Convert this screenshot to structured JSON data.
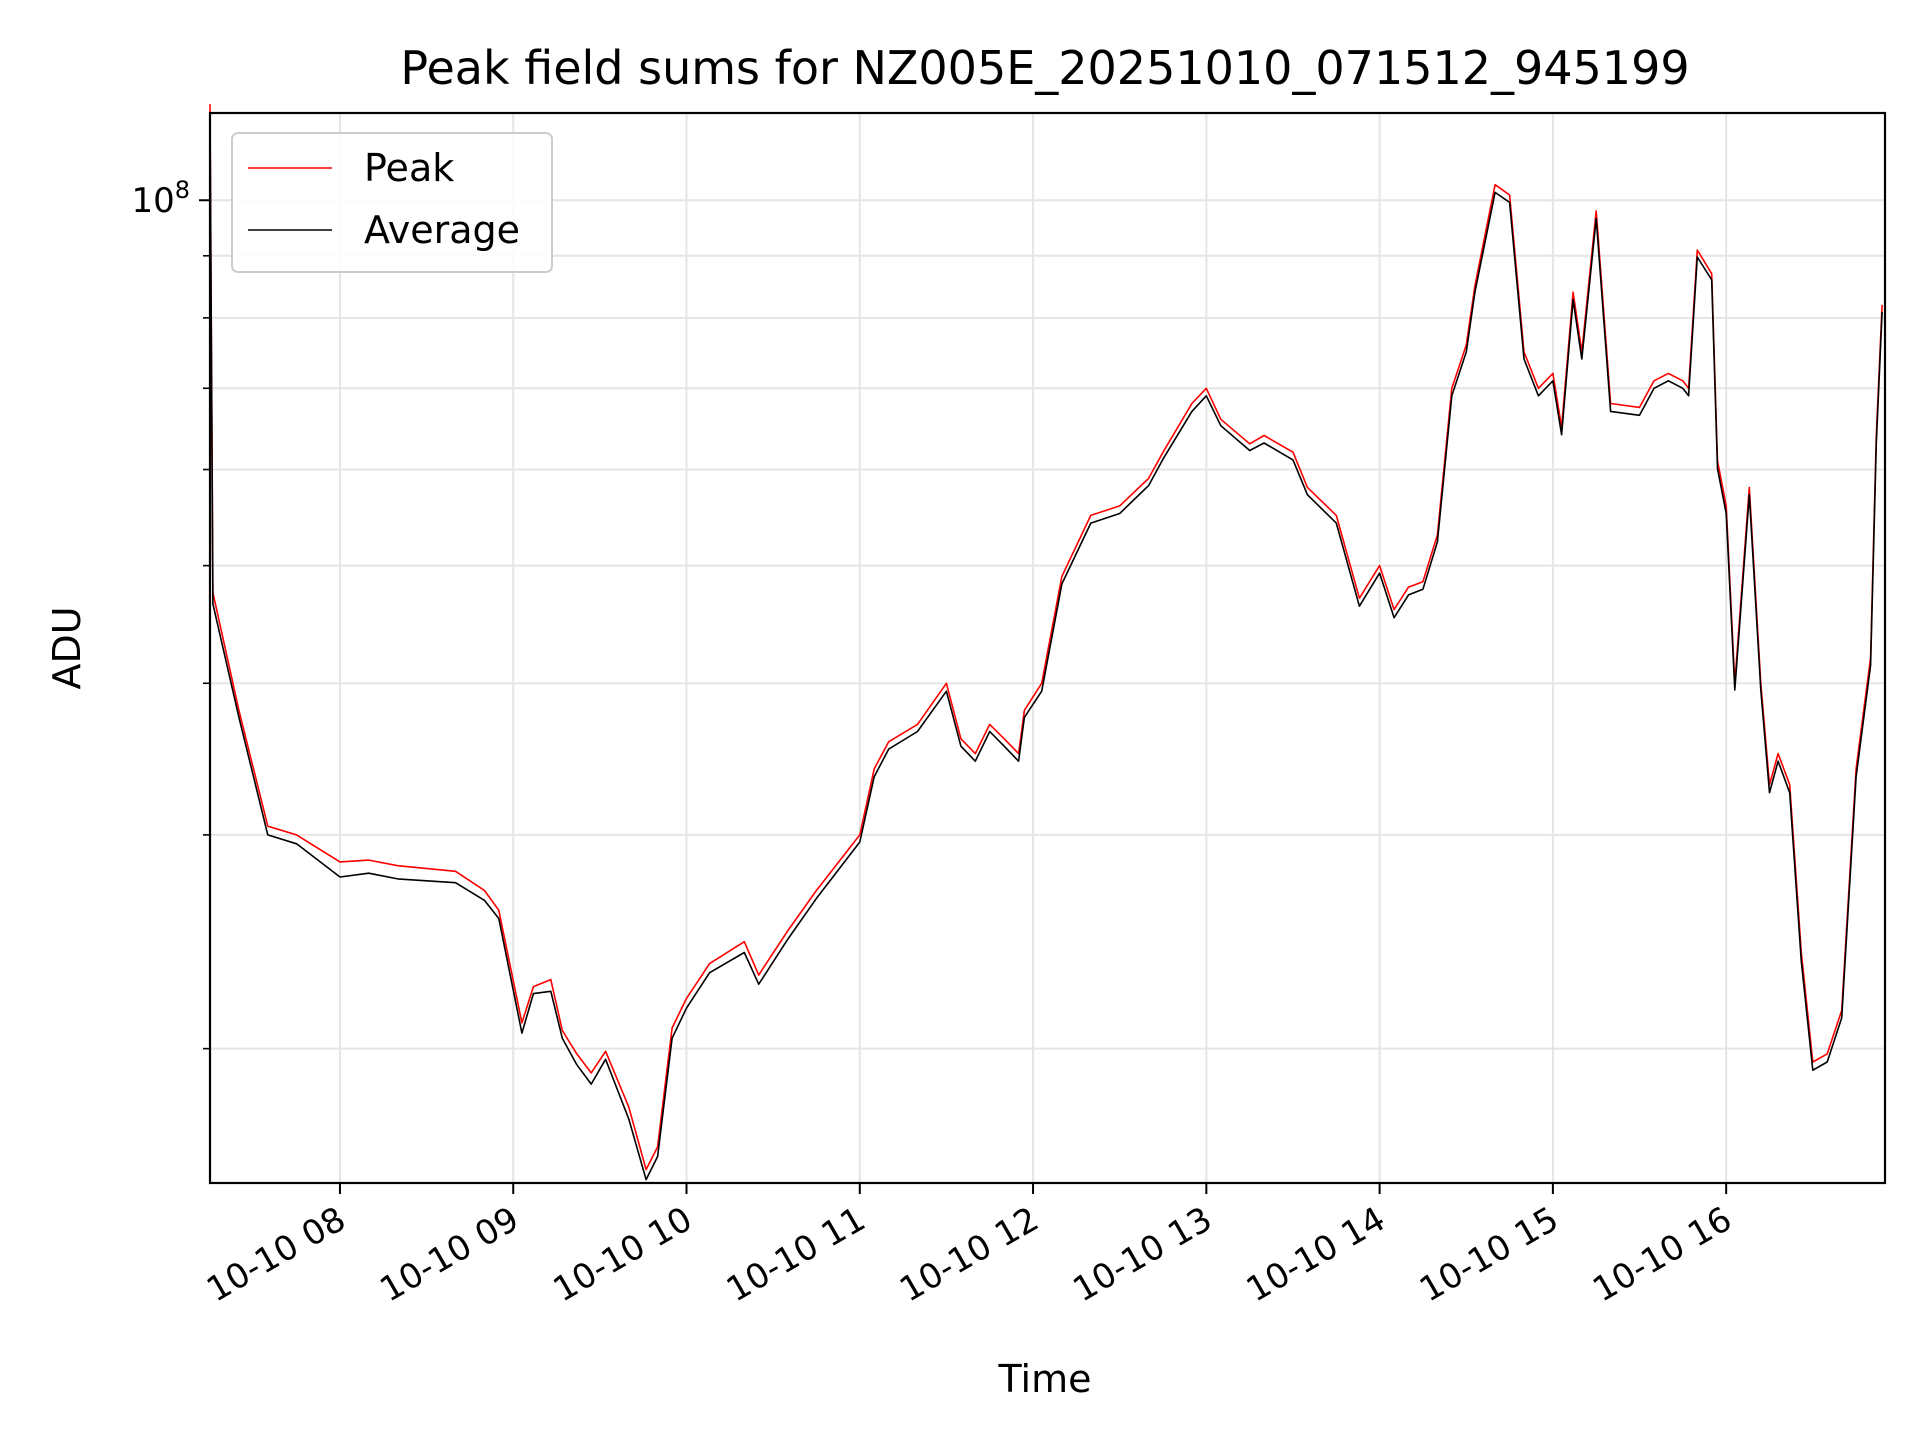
{
  "chart_data": {
    "type": "line",
    "title": "Peak field sums for NZ005E_20251010_071512_945199",
    "xlabel": "Time",
    "ylabel": "ADU",
    "y_scale": "log",
    "ylim": [
      15500000,
      118000000
    ],
    "xlim": [
      "2025-10-10 07:15",
      "2025-10-10 16:55"
    ],
    "x_ticks": [
      {
        "value": "2025-10-10 08:00",
        "label": "10-10 08"
      },
      {
        "value": "2025-10-10 09:00",
        "label": "10-10 09"
      },
      {
        "value": "2025-10-10 10:00",
        "label": "10-10 10"
      },
      {
        "value": "2025-10-10 11:00",
        "label": "10-10 11"
      },
      {
        "value": "2025-10-10 12:00",
        "label": "10-10 12"
      },
      {
        "value": "2025-10-10 13:00",
        "label": "10-10 13"
      },
      {
        "value": "2025-10-10 14:00",
        "label": "10-10 14"
      },
      {
        "value": "2025-10-10 15:00",
        "label": "10-10 15"
      },
      {
        "value": "2025-10-10 16:00",
        "label": "10-10 16"
      }
    ],
    "y_major_tick": {
      "value": 100000000,
      "label_base": "10",
      "label_exp": "8"
    },
    "y_minor_ticks": [
      20000000,
      30000000,
      40000000,
      50000000,
      60000000,
      70000000,
      80000000,
      90000000
    ],
    "grid": true,
    "legend_position": "top-left",
    "series": [
      {
        "name": "Peak",
        "color": "#ff0000",
        "x": [
          "2025-10-10 07:15",
          "2025-10-10 07:16",
          "2025-10-10 07:25",
          "2025-10-10 07:35",
          "2025-10-10 07:45",
          "2025-10-10 08:00",
          "2025-10-10 08:10",
          "2025-10-10 08:20",
          "2025-10-10 08:40",
          "2025-10-10 08:50",
          "2025-10-10 08:55",
          "2025-10-10 09:03",
          "2025-10-10 09:07",
          "2025-10-10 09:13",
          "2025-10-10 09:17",
          "2025-10-10 09:22",
          "2025-10-10 09:27",
          "2025-10-10 09:32",
          "2025-10-10 09:40",
          "2025-10-10 09:46",
          "2025-10-10 09:50",
          "2025-10-10 09:55",
          "2025-10-10 10:00",
          "2025-10-10 10:08",
          "2025-10-10 10:20",
          "2025-10-10 10:25",
          "2025-10-10 10:35",
          "2025-10-10 10:45",
          "2025-10-10 11:00",
          "2025-10-10 11:05",
          "2025-10-10 11:10",
          "2025-10-10 11:20",
          "2025-10-10 11:30",
          "2025-10-10 11:35",
          "2025-10-10 11:40",
          "2025-10-10 11:45",
          "2025-10-10 11:50",
          "2025-10-10 11:55",
          "2025-10-10 11:57",
          "2025-10-10 12:03",
          "2025-10-10 12:10",
          "2025-10-10 12:20",
          "2025-10-10 12:30",
          "2025-10-10 12:40",
          "2025-10-10 12:45",
          "2025-10-10 12:55",
          "2025-10-10 13:00",
          "2025-10-10 13:05",
          "2025-10-10 13:15",
          "2025-10-10 13:20",
          "2025-10-10 13:30",
          "2025-10-10 13:35",
          "2025-10-10 13:45",
          "2025-10-10 13:53",
          "2025-10-10 14:00",
          "2025-10-10 14:05",
          "2025-10-10 14:10",
          "2025-10-10 14:15",
          "2025-10-10 14:20",
          "2025-10-10 14:25",
          "2025-10-10 14:30",
          "2025-10-10 14:33",
          "2025-10-10 14:40",
          "2025-10-10 14:45",
          "2025-10-10 14:50",
          "2025-10-10 14:55",
          "2025-10-10 15:00",
          "2025-10-10 15:03",
          "2025-10-10 15:07",
          "2025-10-10 15:10",
          "2025-10-10 15:15",
          "2025-10-10 15:20",
          "2025-10-10 15:30",
          "2025-10-10 15:35",
          "2025-10-10 15:40",
          "2025-10-10 15:45",
          "2025-10-10 15:47",
          "2025-10-10 15:50",
          "2025-10-10 15:55",
          "2025-10-10 15:57",
          "2025-10-10 16:00",
          "2025-10-10 16:03",
          "2025-10-10 16:08",
          "2025-10-10 16:12",
          "2025-10-10 16:15",
          "2025-10-10 16:18",
          "2025-10-10 16:22",
          "2025-10-10 16:26",
          "2025-10-10 16:30",
          "2025-10-10 16:35",
          "2025-10-10 16:40",
          "2025-10-10 16:45",
          "2025-10-10 16:50",
          "2025-10-10 16:52",
          "2025-10-10 16:54"
        ],
        "y": [
          120000000,
          47500000,
          38000000,
          30500000,
          30000000,
          28500000,
          28600000,
          28300000,
          28000000,
          27000000,
          26000000,
          21000000,
          22500000,
          22800000,
          20700000,
          19800000,
          19100000,
          19900000,
          17900000,
          15900000,
          16600000,
          20800000,
          22000000,
          23500000,
          24500000,
          23000000,
          25000000,
          27000000,
          30000000,
          34000000,
          35800000,
          37000000,
          40000000,
          36000000,
          35000000,
          37000000,
          36000000,
          35000000,
          38000000,
          40000000,
          49000000,
          55000000,
          56000000,
          59000000,
          62000000,
          68000000,
          70000000,
          66000000,
          63000000,
          64000000,
          62000000,
          58000000,
          55000000,
          47000000,
          50000000,
          46000000,
          48000000,
          48500000,
          53000000,
          70000000,
          76000000,
          85000000,
          103000000,
          101000000,
          75000000,
          70000000,
          72000000,
          65000000,
          84000000,
          75000000,
          98000000,
          68000000,
          67500000,
          71000000,
          72000000,
          71000000,
          70000000,
          91000000,
          87000000,
          61000000,
          56000000,
          40000000,
          58000000,
          40000000,
          33000000,
          35000000,
          33000000,
          24000000,
          19500000,
          19800000,
          21500000,
          34000000,
          42000000,
          64000000,
          82000000
        ]
      },
      {
        "name": "Average",
        "color": "#000000",
        "x": [
          "2025-10-10 07:15",
          "2025-10-10 07:16",
          "2025-10-10 07:25",
          "2025-10-10 07:35",
          "2025-10-10 07:45",
          "2025-10-10 08:00",
          "2025-10-10 08:10",
          "2025-10-10 08:20",
          "2025-10-10 08:40",
          "2025-10-10 08:50",
          "2025-10-10 08:55",
          "2025-10-10 09:03",
          "2025-10-10 09:07",
          "2025-10-10 09:13",
          "2025-10-10 09:17",
          "2025-10-10 09:22",
          "2025-10-10 09:27",
          "2025-10-10 09:32",
          "2025-10-10 09:40",
          "2025-10-10 09:46",
          "2025-10-10 09:50",
          "2025-10-10 09:55",
          "2025-10-10 10:00",
          "2025-10-10 10:08",
          "2025-10-10 10:20",
          "2025-10-10 10:25",
          "2025-10-10 10:35",
          "2025-10-10 10:45",
          "2025-10-10 11:00",
          "2025-10-10 11:05",
          "2025-10-10 11:10",
          "2025-10-10 11:20",
          "2025-10-10 11:30",
          "2025-10-10 11:35",
          "2025-10-10 11:40",
          "2025-10-10 11:45",
          "2025-10-10 11:50",
          "2025-10-10 11:55",
          "2025-10-10 11:57",
          "2025-10-10 12:03",
          "2025-10-10 12:10",
          "2025-10-10 12:20",
          "2025-10-10 12:30",
          "2025-10-10 12:40",
          "2025-10-10 12:45",
          "2025-10-10 12:55",
          "2025-10-10 13:00",
          "2025-10-10 13:05",
          "2025-10-10 13:15",
          "2025-10-10 13:20",
          "2025-10-10 13:30",
          "2025-10-10 13:35",
          "2025-10-10 13:45",
          "2025-10-10 13:53",
          "2025-10-10 14:00",
          "2025-10-10 14:05",
          "2025-10-10 14:10",
          "2025-10-10 14:15",
          "2025-10-10 14:20",
          "2025-10-10 14:25",
          "2025-10-10 14:30",
          "2025-10-10 14:33",
          "2025-10-10 14:40",
          "2025-10-10 14:45",
          "2025-10-10 14:50",
          "2025-10-10 14:55",
          "2025-10-10 15:00",
          "2025-10-10 15:03",
          "2025-10-10 15:07",
          "2025-10-10 15:10",
          "2025-10-10 15:15",
          "2025-10-10 15:20",
          "2025-10-10 15:30",
          "2025-10-10 15:35",
          "2025-10-10 15:40",
          "2025-10-10 15:45",
          "2025-10-10 15:47",
          "2025-10-10 15:50",
          "2025-10-10 15:55",
          "2025-10-10 15:57",
          "2025-10-10 16:00",
          "2025-10-10 16:03",
          "2025-10-10 16:08",
          "2025-10-10 16:12",
          "2025-10-10 16:15",
          "2025-10-10 16:18",
          "2025-10-10 16:22",
          "2025-10-10 16:26",
          "2025-10-10 16:30",
          "2025-10-10 16:35",
          "2025-10-10 16:40",
          "2025-10-10 16:45",
          "2025-10-10 16:50",
          "2025-10-10 16:52",
          "2025-10-10 16:54"
        ],
        "y": [
          118000000,
          46500000,
          37500000,
          30000000,
          29500000,
          27700000,
          27900000,
          27600000,
          27400000,
          26500000,
          25600000,
          20600000,
          22200000,
          22300000,
          20400000,
          19400000,
          18700000,
          19600000,
          17500000,
          15600000,
          16300000,
          20400000,
          21600000,
          23100000,
          24000000,
          22600000,
          24600000,
          26600000,
          29600000,
          33500000,
          35300000,
          36500000,
          39400000,
          35500000,
          34500000,
          36500000,
          35500000,
          34500000,
          37500000,
          39400000,
          48300000,
          54200000,
          55200000,
          58200000,
          61200000,
          67000000,
          69000000,
          65200000,
          62200000,
          63100000,
          61100000,
          57200000,
          54200000,
          46300000,
          49300000,
          45300000,
          47300000,
          47800000,
          52300000,
          69000000,
          75000000,
          84000000,
          101500000,
          99600000,
          74000000,
          69000000,
          71000000,
          64100000,
          82800000,
          74000000,
          96600000,
          67000000,
          66500000,
          70000000,
          71000000,
          70000000,
          69000000,
          89800000,
          86000000,
          60100000,
          55200000,
          39500000,
          57200000,
          39500000,
          32500000,
          34500000,
          32500000,
          23600000,
          19200000,
          19500000,
          21200000,
          33500000,
          41400000,
          63100000,
          80900000
        ]
      }
    ]
  }
}
